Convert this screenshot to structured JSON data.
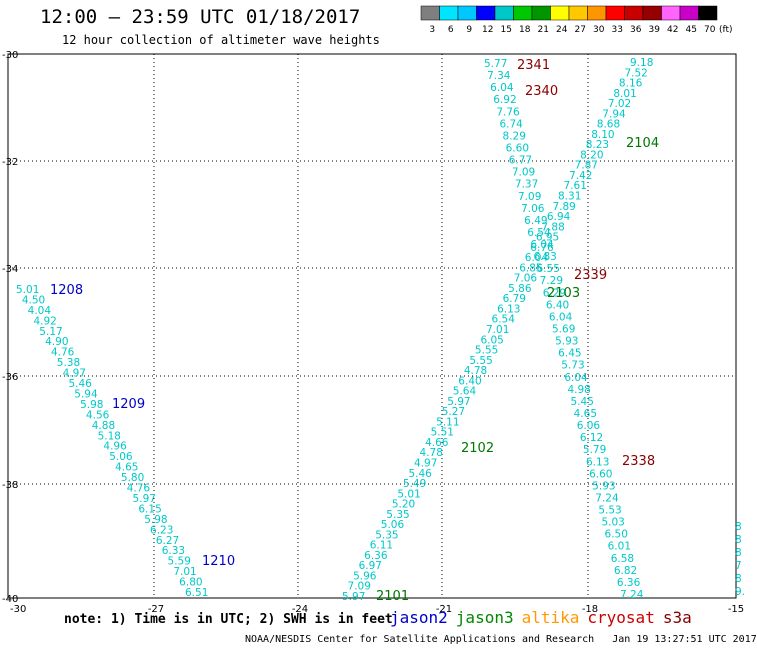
{
  "header": {
    "title": "12:00 – 23:59 UTC 01/18/2017",
    "subtitle": "12 hour collection of altimeter wave heights"
  },
  "colorbar": {
    "swatches": [
      "#7f7f7f",
      "#00e5ff",
      "#00c8ff",
      "#0000ff",
      "#00c8c8",
      "#00c800",
      "#009600",
      "#ffff00",
      "#ffc800",
      "#ff9600",
      "#ff0000",
      "#c80000",
      "#960000",
      "#ff64ff",
      "#c800c8",
      "#000000"
    ],
    "labels": [
      "3",
      "6",
      "9",
      "12",
      "15",
      "18",
      "21",
      "24",
      "27",
      "30",
      "33",
      "36",
      "39",
      "42",
      "45",
      "70"
    ],
    "unit": "(ft)"
  },
  "axes": {
    "x_ticks": [
      "-30",
      "-27",
      "-24",
      "-21",
      "-18",
      "-15"
    ],
    "y_ticks": [
      "-30",
      "-32",
      "-34",
      "-36",
      "-38",
      "-40"
    ]
  },
  "track_labels": [
    {
      "text": "1208",
      "color": "#0000cc"
    },
    {
      "text": "1209",
      "color": "#0000cc"
    },
    {
      "text": "1210",
      "color": "#0000cc"
    },
    {
      "text": "2101",
      "color": "#007700"
    },
    {
      "text": "2102",
      "color": "#007700"
    },
    {
      "text": "2103",
      "color": "#007700"
    },
    {
      "text": "2104",
      "color": "#007700"
    },
    {
      "text": "2338",
      "color": "#880000"
    },
    {
      "text": "2339",
      "color": "#880000"
    },
    {
      "text": "2340",
      "color": "#880000"
    },
    {
      "text": "2341",
      "color": "#880000"
    }
  ],
  "tracks": {
    "color": "#00c8c8",
    "jason2_a": [
      "5.01",
      "4.50",
      "4.04",
      "4.92",
      "5.17",
      "4.90",
      "4.76",
      "5.38",
      "4.97",
      "5.46",
      "5.94",
      "5.98",
      "4.56",
      "4.88",
      "5.18",
      "4.96",
      "5.06",
      "4.65",
      "5.80",
      "4.76",
      "5.97",
      "6.15",
      "5.98",
      "6.23",
      "6.27",
      "6.33",
      "5.59",
      "7.01",
      "6.80",
      "6.51"
    ],
    "jason3_a": [
      "5.97",
      "7.09",
      "5.96",
      "6.97",
      "6.36",
      "6.11",
      "5.35",
      "5.06",
      "5.35",
      "5.20",
      "5.01",
      "5.49",
      "5.46",
      "4.97",
      "4.78",
      "4.66",
      "5.51",
      "5.11",
      "5.27",
      "5.97",
      "5.64",
      "6.40",
      "4.78",
      "5.55",
      "5.55",
      "6.05",
      "7.01",
      "6.54",
      "6.13",
      "6.79",
      "5.86",
      "7.06",
      "6.85",
      "6.04",
      "6.76",
      "6.95",
      "7.88",
      "6.94",
      "7.89",
      "8.31",
      "7.61",
      "7.42",
      "7.87",
      "8.20",
      "8.23",
      "8.10",
      "8.68",
      "7.94",
      "7.02",
      "8.01",
      "8.16",
      "7.52",
      "9.18"
    ],
    "cryosat_a": [
      "5.77",
      "7.34",
      "6.04",
      "6.92",
      "7.76",
      "6.74",
      "8.29",
      "6.60",
      "6.77",
      "7.09",
      "7.37",
      "7.09",
      "7.06",
      "6.49",
      "6.54",
      "6.04",
      "6.83",
      "6.55",
      "7.29",
      "6.29",
      "6.40",
      "6.04",
      "5.69",
      "5.93",
      "6.45",
      "5.73",
      "6.04",
      "4.98",
      "5.45",
      "4.65",
      "6.06",
      "6.12",
      "5.79",
      "6.13",
      "6.60",
      "5.93",
      "7.24",
      "5.53",
      "5.03",
      "6.50",
      "6.01",
      "6.58",
      "6.82",
      "6.36",
      "7.24"
    ],
    "edge": [
      "8",
      "8",
      "8",
      "7",
      "8",
      "9."
    ]
  },
  "note": "note: 1) Time is in UTC; 2) SWH is in feet",
  "legend": [
    {
      "name": "jason2",
      "color": "#0000cc"
    },
    {
      "name": "jason3",
      "color": "#008800"
    },
    {
      "name": "altika",
      "color": "#ff9900"
    },
    {
      "name": "cryosat",
      "color": "#cc0000"
    },
    {
      "name": "s3a",
      "color": "#880000"
    }
  ],
  "footer": "NOAA/NESDIS Center for Satellite Applications and Research   Jan 19 13:27:51 UTC 2017"
}
